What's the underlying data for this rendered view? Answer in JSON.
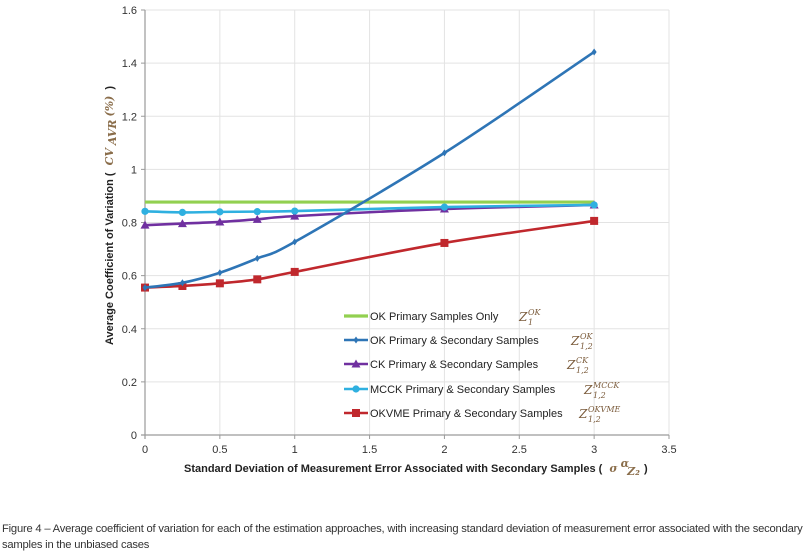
{
  "chart_data": {
    "type": "line",
    "title": "",
    "xlabel": "Standard Deviation of Measurement Error Associated with Secondary Samples (",
    "xlabel_math": {
      "base": "σ",
      "sup": "α",
      "sub": "Z₂"
    },
    "ylabel": "Average Coefficient of Variation (",
    "ylabel_math": {
      "base": "CV",
      "sub": "AVR",
      "suffix": "(%)"
    },
    "xlim": [
      0,
      3.5
    ],
    "ylim": [
      0,
      1.6
    ],
    "x_ticks": [
      "0",
      "0.5",
      "1",
      "1.5",
      "2",
      "2.5",
      "3",
      "3.5"
    ],
    "x_tick_values": [
      0,
      0.5,
      1,
      1.5,
      2,
      2.5,
      3,
      3.5
    ],
    "y_ticks": [
      "0",
      "0.2",
      "0.4",
      "0.6",
      "0.8",
      "1",
      "1.2",
      "1.4",
      "1.6"
    ],
    "y_tick_values": [
      0,
      0.2,
      0.4,
      0.6,
      0.8,
      1.0,
      1.2,
      1.4,
      1.6
    ],
    "grid": true,
    "legend_position": "center-inside",
    "x": [
      0,
      0.25,
      0.5,
      0.75,
      1,
      2,
      3
    ],
    "series": [
      {
        "name": "OK Primary Samples Only",
        "math": {
          "base": "Z",
          "sub": "1",
          "sup": "OK"
        },
        "color": "#92d050",
        "marker": "none",
        "values": [
          0.877,
          0.877,
          0.877,
          0.877,
          0.877,
          0.877,
          0.877
        ]
      },
      {
        "name": "OK Primary & Secondary Samples",
        "math": {
          "base": "Z",
          "sub": "1,2",
          "sup": "OK"
        },
        "color": "#2e75b6",
        "marker": "diamond",
        "values": [
          0.555,
          0.573,
          0.611,
          0.665,
          0.727,
          1.062,
          1.442
        ]
      },
      {
        "name": "CK Primary & Secondary Samples",
        "math": {
          "base": "Z",
          "sub": "1,2",
          "sup": "CK"
        },
        "color": "#7030a0",
        "marker": "triangle",
        "values": [
          0.79,
          0.796,
          0.802,
          0.812,
          0.824,
          0.851,
          0.866
        ]
      },
      {
        "name": "MCCK Primary & Secondary Samples",
        "math": {
          "base": "Z",
          "sub": "1,2",
          "sup": "MCCK"
        },
        "color": "#2fb0e0",
        "marker": "circle",
        "values": [
          0.842,
          0.838,
          0.84,
          0.841,
          0.843,
          0.858,
          0.866
        ]
      },
      {
        "name": "OKVME Primary & Secondary Samples",
        "math": {
          "base": "Z",
          "sub": "1,2",
          "sup": "OKVME"
        },
        "color": "#c0282d",
        "marker": "square",
        "values": [
          0.555,
          0.561,
          0.571,
          0.586,
          0.614,
          0.723,
          0.806
        ]
      }
    ]
  },
  "caption": "Figure 4 – Average coefficient of variation for each of the estimation approaches, with increasing standard deviation of measurement error associated with the secondary samples in the unbiased cases"
}
